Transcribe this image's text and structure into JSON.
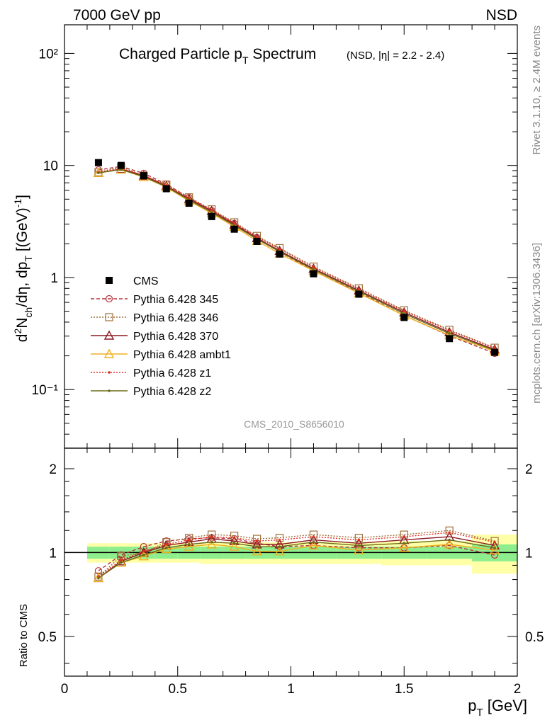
{
  "header": {
    "left": "7000 GeV pp",
    "right": "NSD"
  },
  "side_text": {
    "rivet": "Rivet 3.1.10, ≥ 2.4M events",
    "mcplots": "mcplots.cern.ch [arXiv:1306.3436]"
  },
  "chart_data": {
    "type": "line",
    "title_main": "Charged Particle p",
    "title_sub": "T",
    "title_main2": " Spectrum",
    "title_extra": "(NSD, |η| = 2.2 - 2.4)",
    "watermark": "CMS_2010_S8656010",
    "ylabel_main": "d²N",
    "xlabel": "p",
    "xlabel_sub": "T",
    "xlabel_unit": " [GeV]",
    "ratio_ylabel": "Ratio to CMS",
    "xlim": [
      0,
      2
    ],
    "ylim_main": [
      0.03,
      180
    ],
    "yscale_main": "log",
    "ylim_ratio": [
      0.36,
      2.37
    ],
    "yscale_ratio": "log",
    "x_ticks": [
      "0",
      "0.5",
      "1",
      "1.5",
      "2"
    ],
    "y_ticks_main": [
      "10⁻¹",
      "1",
      "10",
      "10²"
    ],
    "y_ticks_ratio": [
      "0.5",
      "1",
      "2"
    ],
    "x": [
      0.15,
      0.25,
      0.35,
      0.45,
      0.55,
      0.65,
      0.75,
      0.85,
      0.95,
      1.1,
      1.3,
      1.5,
      1.7,
      1.9
    ],
    "x_err_lo": [
      0.1,
      0.2,
      0.3,
      0.4,
      0.5,
      0.6,
      0.7,
      0.8,
      0.9,
      1.0,
      1.2,
      1.4,
      1.6,
      1.8
    ],
    "x_err_hi": [
      0.2,
      0.3,
      0.4,
      0.5,
      0.6,
      0.7,
      0.8,
      0.9,
      1.0,
      1.2,
      1.4,
      1.6,
      1.8,
      2.0
    ],
    "data": {
      "name": "CMS",
      "values": [
        10.6,
        10.0,
        8.1,
        6.2,
        4.6,
        3.5,
        2.7,
        2.1,
        1.62,
        1.08,
        0.71,
        0.44,
        0.285,
        0.215
      ],
      "stat_band": [
        0.05,
        0.05,
        0.05,
        0.05,
        0.05,
        0.05,
        0.05,
        0.05,
        0.05,
        0.05,
        0.05,
        0.05,
        0.05,
        0.07
      ],
      "total_band": [
        0.08,
        0.08,
        0.08,
        0.08,
        0.08,
        0.09,
        0.09,
        0.09,
        0.09,
        0.09,
        0.09,
        0.1,
        0.1,
        0.16
      ]
    },
    "series": [
      {
        "name": "Pythia 6.428 345",
        "color": "#b5333f",
        "dash": "5,3",
        "marker": "circle",
        "ratio": [
          0.86,
          0.98,
          1.05,
          1.1,
          1.12,
          1.13,
          1.12,
          1.08,
          1.05,
          1.06,
          1.04,
          1.04,
          1.06,
          0.98
        ]
      },
      {
        "name": "Pythia 6.428 346",
        "color": "#a0703a",
        "dash": "2,2",
        "marker": "square",
        "ratio": [
          0.82,
          0.97,
          1.0,
          1.09,
          1.13,
          1.16,
          1.15,
          1.12,
          1.13,
          1.16,
          1.13,
          1.16,
          1.2,
          1.1
        ]
      },
      {
        "name": "Pythia 6.428 370",
        "color": "#8c1a24",
        "dash": "",
        "marker": "triangle",
        "ratio": [
          0.81,
          0.93,
          1.0,
          1.06,
          1.09,
          1.12,
          1.1,
          1.07,
          1.07,
          1.11,
          1.08,
          1.11,
          1.14,
          1.06
        ]
      },
      {
        "name": "Pythia 6.428 ambt1",
        "color": "#f0b020",
        "dash": "",
        "marker": "triangle-open",
        "ratio": [
          0.81,
          0.92,
          0.97,
          1.03,
          1.05,
          1.07,
          1.05,
          1.01,
          1.01,
          1.06,
          1.02,
          1.04,
          1.07,
          1.02
        ]
      },
      {
        "name": "Pythia 6.428 z1",
        "color": "#e03020",
        "dash": "2,2",
        "marker": "dot",
        "ratio": [
          0.82,
          0.94,
          1.01,
          1.07,
          1.11,
          1.14,
          1.13,
          1.1,
          1.11,
          1.14,
          1.11,
          1.14,
          1.18,
          1.09
        ]
      },
      {
        "name": "Pythia 6.428 z2",
        "color": "#6b6b1a",
        "dash": "",
        "marker": "dot",
        "ratio": [
          0.81,
          0.92,
          0.98,
          1.04,
          1.07,
          1.09,
          1.08,
          1.05,
          1.05,
          1.09,
          1.06,
          1.08,
          1.11,
          1.04
        ]
      }
    ]
  }
}
